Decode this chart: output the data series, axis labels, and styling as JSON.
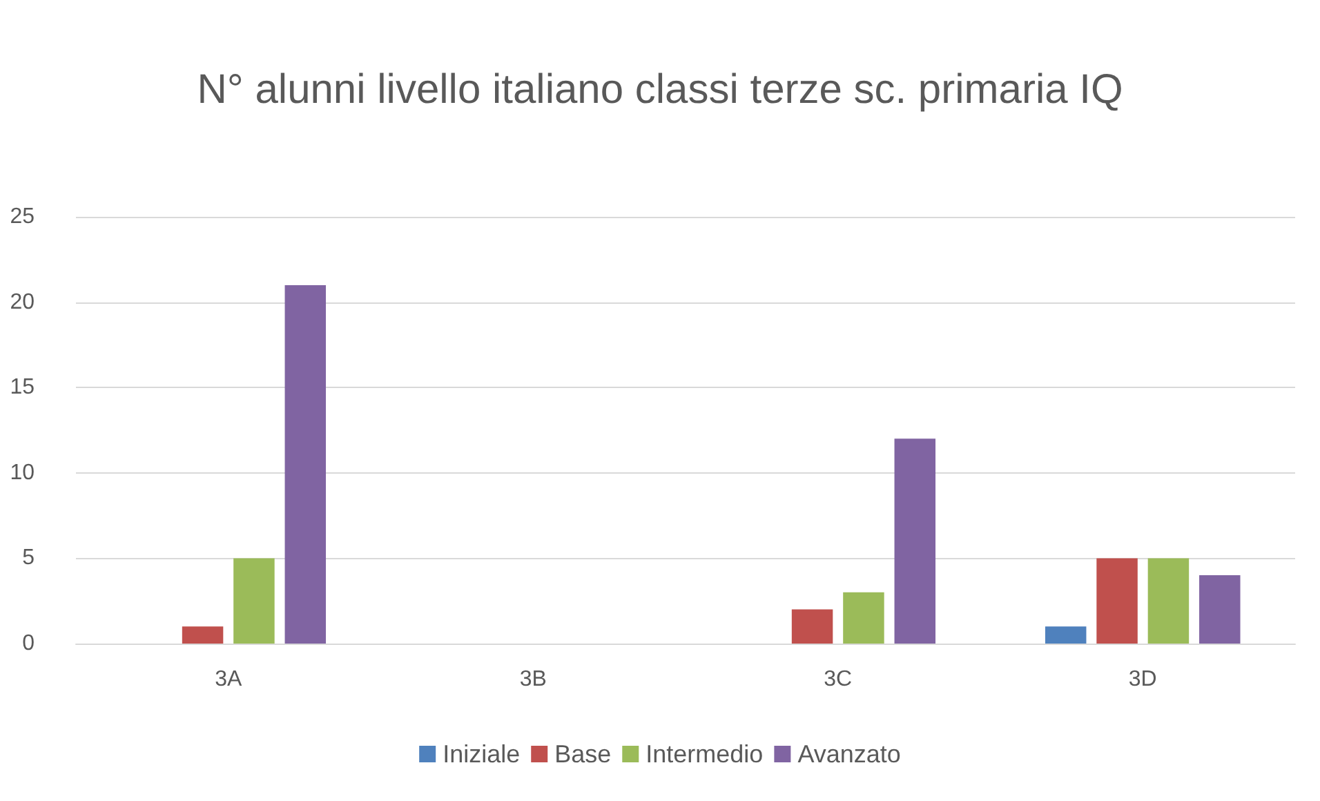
{
  "chart_data": {
    "type": "bar",
    "title": "N° alunni livello italiano classi terze sc. primaria IQ",
    "categories": [
      "3A",
      "3B",
      "3C",
      "3D"
    ],
    "series": [
      {
        "name": "Iniziale",
        "color": "#4f81bd",
        "values": [
          0,
          0,
          0,
          1
        ]
      },
      {
        "name": "Base",
        "color": "#c0504d",
        "values": [
          1,
          0,
          2,
          5
        ]
      },
      {
        "name": "Intermedio",
        "color": "#9bbb59",
        "values": [
          5,
          0,
          3,
          5
        ]
      },
      {
        "name": "Avanzato",
        "color": "#8064a2",
        "values": [
          21,
          0,
          12,
          4
        ]
      }
    ],
    "ylim": [
      0,
      25
    ],
    "yticks": [
      0,
      5,
      10,
      15,
      20,
      25
    ],
    "grid": "y",
    "legend": "bottom"
  }
}
